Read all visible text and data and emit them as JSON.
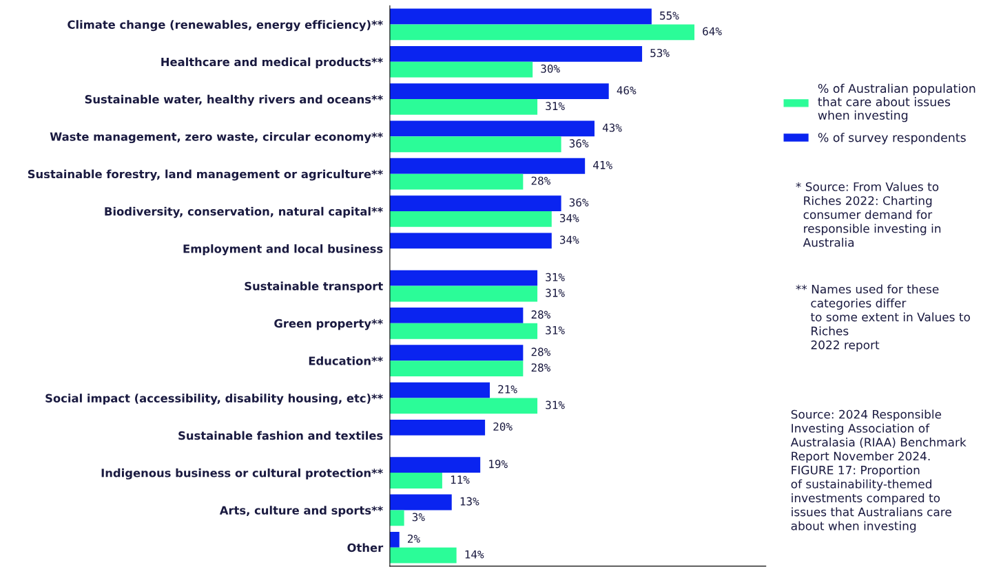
{
  "chart_data": {
    "type": "bar",
    "orientation": "horizontal",
    "categories": [
      "Climate change (renewables, energy efficiency)**",
      "Healthcare and medical products**",
      "Sustainable water, healthy rivers and oceans**",
      "Waste management, zero waste, circular economy**",
      "Sustainable forestry, land management or agriculture**",
      "Biodiversity, conservation, natural capital**",
      "Employment and local business",
      "Sustainable transport",
      "Green property**",
      "Education**",
      "Social impact (accessibility, disability housing, etc)**",
      "Sustainable fashion and textiles",
      "Indigenous business or cultural protection**",
      "Arts, culture and sports**",
      "Other"
    ],
    "series": [
      {
        "name": "% of survey respondents",
        "color": "#0a24f0",
        "values": [
          55,
          53,
          46,
          43,
          41,
          36,
          34,
          31,
          28,
          28,
          21,
          20,
          19,
          13,
          2
        ],
        "value_labels": [
          "55%",
          "53%",
          "46%",
          "43%",
          "41%",
          "36%",
          "34%",
          "31%",
          "28%",
          "28%",
          "21%",
          "20%",
          "19%",
          "13%",
          "2%"
        ]
      },
      {
        "name": "% of Australian population\nthat care about issues\nwhen investing",
        "color": "#2bfc98",
        "values": [
          64,
          30,
          31,
          36,
          28,
          34,
          null,
          31,
          31,
          28,
          31,
          null,
          11,
          3,
          14
        ],
        "value_labels": [
          "64%",
          "30%",
          "31%",
          "36%",
          "28%",
          "34%",
          null,
          "31%",
          "31%",
          "28%",
          "31%",
          null,
          "11%",
          "3%",
          "14%"
        ]
      }
    ],
    "xlim": [
      0,
      79
    ],
    "tick_labels": "y",
    "grid": false,
    "legend": "right",
    "annotations": [
      "* Source: From Values to\n  Riches 2022: Charting\n  consumer demand for\n  responsible investing in\n  Australia",
      "** Names used for these\n    categories differ\n    to some extent in Values to\n    Riches\n    2022 report",
      "Source: 2024 Responsible\nInvesting Association of\nAustralasia (RIAA) Benchmark\nReport November 2024.\nFIGURE 17: Proportion\nof sustainability-themed\ninvestments compared to\nissues that Australians care\nabout when investing"
    ]
  }
}
